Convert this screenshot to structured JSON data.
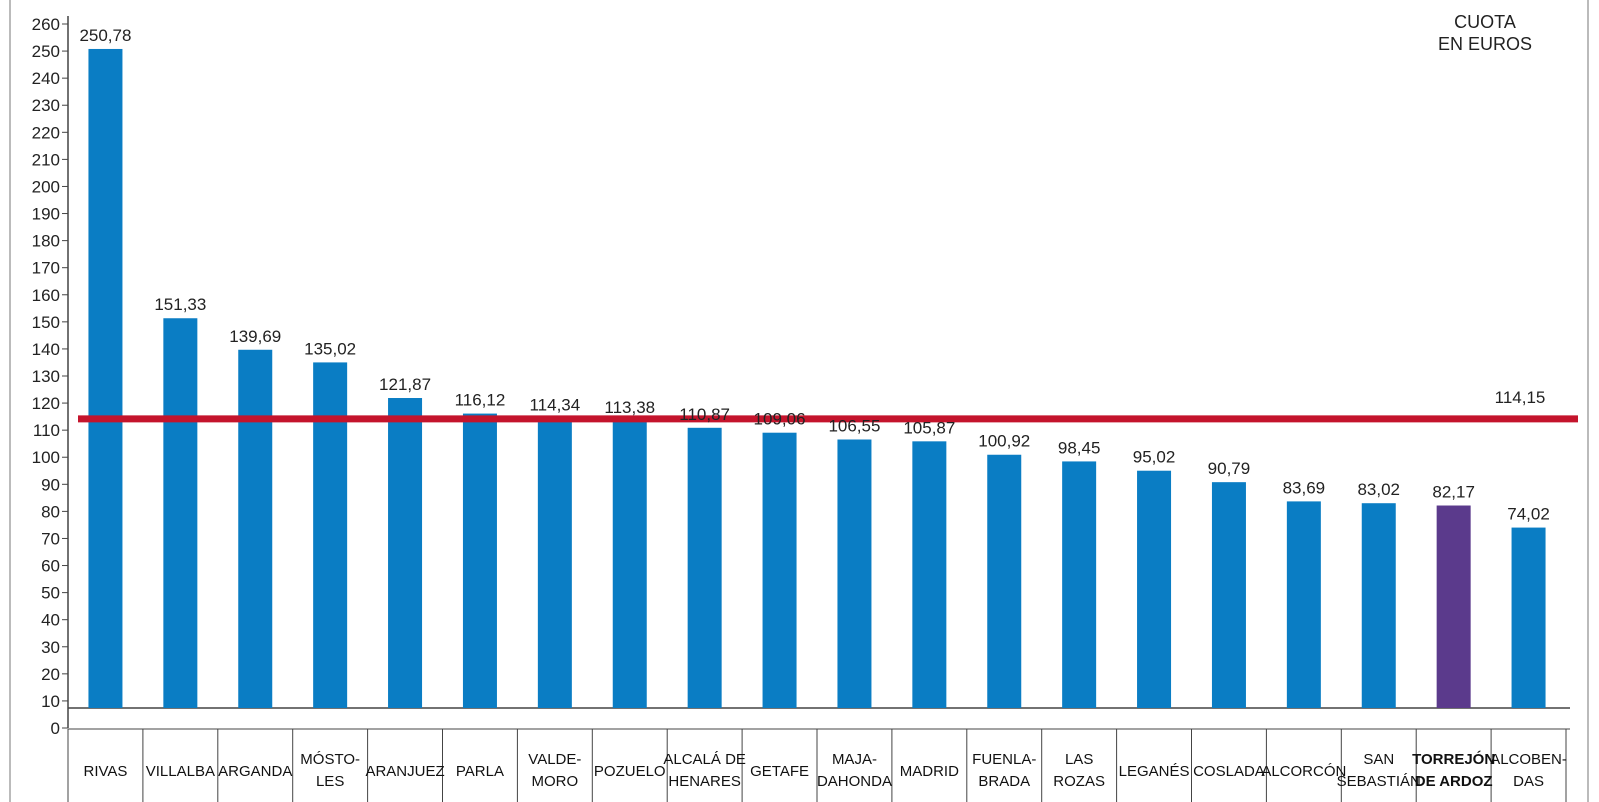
{
  "chart_data": {
    "type": "bar",
    "unit_label": [
      "CUOTA",
      "EN EUROS"
    ],
    "categories": [
      [
        "RIVAS"
      ],
      [
        "VILLALBA"
      ],
      [
        "ARGANDA"
      ],
      [
        "MÓSTO-",
        "LES"
      ],
      [
        "ARANJUEZ"
      ],
      [
        "PARLA"
      ],
      [
        "VALDE-",
        "MORO"
      ],
      [
        "POZUELO"
      ],
      [
        "ALCALÁ DE",
        "HENARES"
      ],
      [
        "GETAFE"
      ],
      [
        "MAJA-",
        "DAHONDA"
      ],
      [
        "MADRID"
      ],
      [
        "FUENLA-",
        "BRADA"
      ],
      [
        "LAS",
        "ROZAS"
      ],
      [
        "LEGANÉS"
      ],
      [
        "COSLADA"
      ],
      [
        "ALCORCÓN"
      ],
      [
        "SAN",
        "SEBASTIÁN"
      ],
      [
        "TORREJÓN",
        "DE ARDOZ"
      ],
      [
        "ALCOBEN-",
        "DAS"
      ]
    ],
    "values": [
      250.78,
      151.33,
      139.69,
      135.02,
      121.87,
      116.12,
      114.34,
      113.38,
      110.87,
      109.06,
      106.55,
      105.87,
      100.92,
      98.45,
      95.02,
      90.79,
      83.69,
      83.02,
      82.17,
      74.02
    ],
    "value_labels": [
      "250,78",
      "151,33",
      "139,69",
      "135,02",
      "121,87",
      "116,12",
      "114,34",
      "113,38",
      "110,87",
      "109,06",
      "106,55",
      "105,87",
      "100,92",
      "98,45",
      "95,02",
      "90,79",
      "83,69",
      "83,02",
      "82,17",
      "74,02"
    ],
    "highlight_index": 18,
    "reference_line": {
      "value": 114.15,
      "label": "114,15"
    },
    "ylim": [
      0,
      260
    ],
    "yticks": [
      0,
      10,
      20,
      30,
      40,
      50,
      60,
      70,
      80,
      90,
      100,
      110,
      120,
      130,
      140,
      150,
      160,
      170,
      180,
      190,
      200,
      210,
      220,
      230,
      240,
      250,
      260
    ],
    "colors": {
      "bar": "#0a7dc4",
      "highlight": "#5b3a8c",
      "reference_line": "#c4142c",
      "axis": "#444444"
    }
  }
}
